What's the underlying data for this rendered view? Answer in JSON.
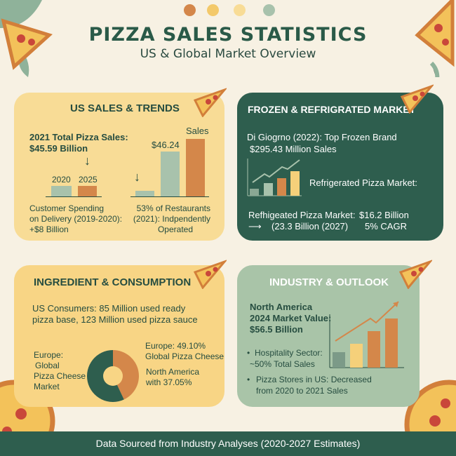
{
  "header": {
    "title": "PIZZA SALES STATISTICS",
    "subtitle": "US & Global Market Overview",
    "dot_colors": [
      "#d4874a",
      "#f3c96a",
      "#f8dc96",
      "#a8c2ac"
    ]
  },
  "colors": {
    "background": "#f7f1e3",
    "dark_green": "#2e5e4e",
    "yellow_card": "#f8dc96",
    "sage_card": "#a9c4a8",
    "orange": "#d4874a",
    "sage": "#a8c2ac",
    "yellow": "#f5d07a"
  },
  "us_sales": {
    "title": "US SALES & TRENDS",
    "total_label": "2021 Total Pizza Sales:",
    "total_value": "$45.59 Billion",
    "year_a": "2020",
    "year_b": "2025",
    "bar_value": "$46.24",
    "bar_label": "Sales",
    "delivery_1": "Customer Spending",
    "delivery_2": "on Delivery (2019-2020):",
    "delivery_3": "+$8 Billion",
    "restaurants_1": "53% of Restaurants",
    "restaurants_2": "(2021): Indpendently",
    "restaurants_3": "Operated"
  },
  "frozen": {
    "title": "FROZEN & REFRIGRATED MARKET",
    "brand_1": "Di Giogrno (2022): Top Frozen Brand",
    "brand_2": "$295.43 Million Sales",
    "refrig_label": "Refrigerated Pizza Market:",
    "market_1": "Refhigeated Pizza Market:",
    "market_value": "$16.2 Billion",
    "market_2": "(23.3 Billion (2027)",
    "cagr": "5% CAGR"
  },
  "ingredient": {
    "title": "INGREDIENT & CONSUMPTION",
    "consumers_1": "US Consumers: 85 Million used ready",
    "consumers_2": "pizza base, 123 Million used pizza sauce",
    "left_1": "Europe:",
    "left_2": "Global",
    "left_3": "Pizza Cheese",
    "left_4": "Market",
    "europe_1": "Europe: 49.10%",
    "europe_2": "Global Pizza Cheese",
    "na_1": "North America",
    "na_2": "with 37.05%",
    "donut": {
      "europe": 49.1,
      "north_america": 37.05
    }
  },
  "industry": {
    "title": "INDUSTRY & OUTLOOK",
    "na_1": "North America",
    "na_2": "2024 Market Value:",
    "na_3": "$56.5 Billion",
    "bullet_1a": "Hospitality Sector:",
    "bullet_1b": "~50% Total Sales",
    "bullet_2a": "Pizza Stores in US: Decreased",
    "bullet_2b": "from 2020 to 2021 Sales"
  },
  "footer": {
    "text": "Data Sourced from Industry Analyses (2020-2027 Estimates)"
  }
}
